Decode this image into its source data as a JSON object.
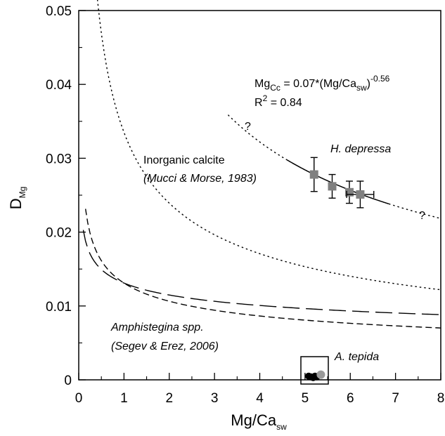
{
  "chart_data": {
    "type": "scatter",
    "xlabel": {
      "main": "Mg/Ca",
      "sub": "sw"
    },
    "ylabel": {
      "main": "D",
      "sub": "Mg"
    },
    "xlim": [
      0,
      8
    ],
    "ylim": [
      0,
      0.05
    ],
    "x_ticks": [
      0,
      1,
      2,
      3,
      4,
      5,
      6,
      7,
      8
    ],
    "y_ticks": [
      0,
      0.01,
      0.02,
      0.03,
      0.04,
      0.05
    ],
    "x_tick_labels": [
      "0",
      "1",
      "2",
      "3",
      "4",
      "5",
      "6",
      "7",
      "8"
    ],
    "y_tick_labels": [
      "0",
      "0.01",
      "0.02",
      "0.03",
      "0.04",
      "0.05"
    ],
    "grid": false,
    "series": [
      {
        "name": "H. depressa",
        "marker": "square",
        "color": "#808080",
        "points": [
          {
            "x": 5.2,
            "y": 0.0278,
            "yerr": 0.0023
          },
          {
            "x": 5.6,
            "y": 0.0262,
            "yerr": 0.0016
          },
          {
            "x": 5.98,
            "y": 0.0254,
            "yerr": 0.0015
          },
          {
            "x": 6.22,
            "y": 0.0251,
            "yerr": 0.0018,
            "xerr": 0.3
          }
        ]
      },
      {
        "name": "A. tepida",
        "marker": "circle",
        "color": "#000000",
        "points": [
          {
            "x": 5.08,
            "y": 0.0005
          },
          {
            "x": 5.13,
            "y": 0.0004
          },
          {
            "x": 5.18,
            "y": 0.0003
          },
          {
            "x": 5.22,
            "y": 0.0005
          },
          {
            "x": 5.26,
            "y": 0.0004
          }
        ],
        "highlight": {
          "x": 5.35,
          "y": 0.0007,
          "color": "#9a9a9a"
        }
      }
    ],
    "curves": [
      {
        "id": "hdepressa-fit",
        "style": "solid",
        "formula": "0.07*x^-0.56",
        "x_range": [
          4.6,
          6.85
        ]
      },
      {
        "id": "hdepressa-fit-extrapolated-low",
        "style": "dotted",
        "formula": "0.07*x^-0.56",
        "x_range": [
          3.3,
          4.6
        ]
      },
      {
        "id": "hdepressa-fit-extrapolated-high",
        "style": "dotted",
        "formula": "0.07*x^-0.56",
        "x_range": [
          6.85,
          8.0
        ]
      },
      {
        "id": "inorganic-calcite",
        "style": "dotted",
        "formula": "0.0335*x^-0.486",
        "x_range": [
          0.17,
          8.0
        ]
      },
      {
        "id": "amphistegina-long-dash",
        "style": "long-dash",
        "formula": "0.0131*x^-0.19",
        "x_range": [
          0.1,
          8.0
        ]
      },
      {
        "id": "amphistegina-short-dash",
        "style": "short-dash",
        "formula": "0.0131*x^-0.30",
        "x_range": [
          0.15,
          8.0
        ]
      }
    ],
    "annotations": {
      "equation": {
        "lhs_main": "Mg",
        "lhs_sub": "Cc",
        "rhs_main": " = 0.07*(Mg/Ca",
        "rhs_sub": "sw",
        "rhs_close": ")",
        "exponent": "-0.56"
      },
      "r2": {
        "main": "R",
        "sup": "2",
        "value": " = 0.84"
      },
      "h_depressa": "H. depressa",
      "inorganic_line1": "Inorganic calcite",
      "inorganic_line2": "(Mucci & Morse, 1983)",
      "amphi_line1": "Amphistegina spp.",
      "amphi_line2": "(Segev & Erez, 2006)",
      "a_tepida": "A. tepida",
      "question_mark": "?"
    }
  }
}
